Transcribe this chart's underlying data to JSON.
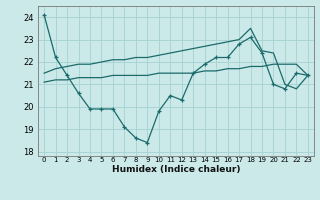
{
  "xlabel": "Humidex (Indice chaleur)",
  "background_color": "#cce9e9",
  "grid_color": "#aad4d4",
  "line_color": "#1a6b6b",
  "xlim": [
    -0.5,
    23.5
  ],
  "ylim": [
    17.8,
    24.5
  ],
  "yticks": [
    18,
    19,
    20,
    21,
    22,
    23,
    24
  ],
  "xtick_labels": [
    "0",
    "1",
    "2",
    "3",
    "4",
    "5",
    "6",
    "7",
    "8",
    "9",
    "10",
    "11",
    "12",
    "13",
    "14",
    "15",
    "16",
    "17",
    "18",
    "19",
    "20",
    "21",
    "22",
    "23"
  ],
  "line1_x": [
    0,
    1,
    2,
    3,
    4,
    5,
    6,
    7,
    8,
    9,
    10,
    11,
    12,
    13,
    14,
    15,
    16,
    17,
    18,
    19,
    20,
    21,
    22,
    23
  ],
  "line1_y": [
    24.1,
    22.2,
    21.4,
    20.6,
    19.9,
    19.9,
    19.9,
    19.1,
    18.6,
    18.4,
    19.8,
    20.5,
    20.3,
    21.5,
    21.9,
    22.2,
    22.2,
    22.8,
    23.1,
    22.4,
    21.0,
    20.8,
    21.5,
    21.4
  ],
  "line2_x": [
    0,
    1,
    2,
    3,
    4,
    5,
    6,
    7,
    8,
    9,
    10,
    11,
    12,
    13,
    14,
    15,
    16,
    17,
    18,
    19,
    20,
    21,
    22,
    23
  ],
  "line2_y": [
    21.1,
    21.2,
    21.2,
    21.3,
    21.3,
    21.3,
    21.4,
    21.4,
    21.4,
    21.4,
    21.5,
    21.5,
    21.5,
    21.5,
    21.6,
    21.6,
    21.7,
    21.7,
    21.8,
    21.8,
    21.9,
    21.9,
    21.9,
    21.4
  ],
  "line3_x": [
    0,
    1,
    2,
    3,
    4,
    5,
    6,
    7,
    8,
    9,
    10,
    11,
    12,
    13,
    14,
    15,
    16,
    17,
    18,
    19,
    20,
    21,
    22,
    23
  ],
  "line3_y": [
    21.5,
    21.7,
    21.8,
    21.9,
    21.9,
    22.0,
    22.1,
    22.1,
    22.2,
    22.2,
    22.3,
    22.4,
    22.5,
    22.6,
    22.7,
    22.8,
    22.9,
    23.0,
    23.5,
    22.5,
    22.4,
    21.0,
    20.8,
    21.4
  ]
}
